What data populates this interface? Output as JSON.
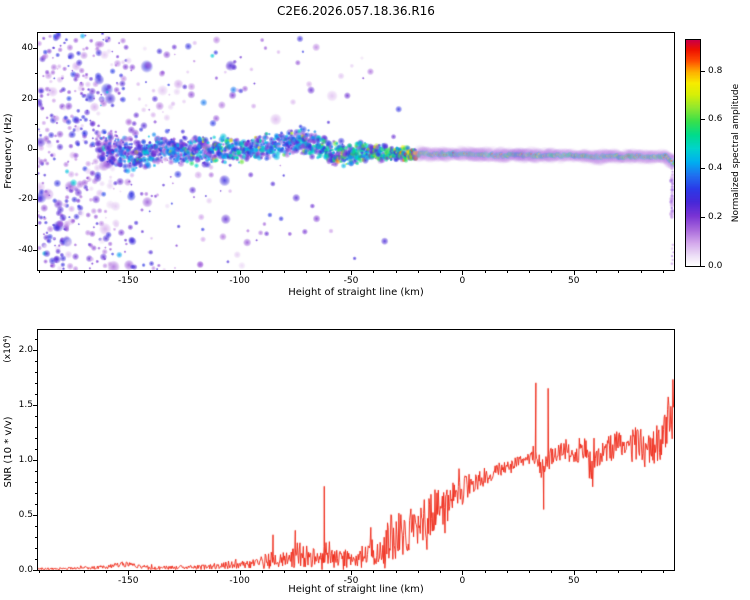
{
  "title": "C2E6.2026.057.18.36.R16",
  "chart_data": [
    {
      "id": "spectrogram",
      "type": "heatmap",
      "title": "C2E6.2026.057.18.36.R16",
      "xlabel": "Height of straight line (km)",
      "ylabel": "Frequency (Hz)",
      "xlim": [
        -190.5,
        95
      ],
      "ylim": [
        -48,
        46
      ],
      "xticks": [
        {
          "v": -150,
          "label": "-150"
        },
        {
          "v": -100,
          "label": "-100"
        },
        {
          "v": -50,
          "label": "-50"
        },
        {
          "v": 0,
          "label": "0"
        },
        {
          "v": 50,
          "label": "50"
        }
      ],
      "yticks": [
        {
          "v": 40,
          "label": "40"
        },
        {
          "v": 20,
          "label": "20"
        },
        {
          "v": 0,
          "label": "0"
        },
        {
          "v": -20,
          "label": "-20"
        },
        {
          "v": -40,
          "label": "-40"
        }
      ],
      "x_minor_step": 10,
      "y_minor_step": 10,
      "colorbar": {
        "label": "Normalized spectral amplitude",
        "vmax": 0.925,
        "ticks": [
          {
            "v": 0,
            "label": "0.0"
          },
          {
            "v": 0.2,
            "label": "0.2"
          },
          {
            "v": 0.4,
            "label": "0.4"
          },
          {
            "v": 0.6,
            "label": "0.6"
          },
          {
            "v": 0.8,
            "label": "0.8"
          }
        ]
      },
      "colormap_stops": [
        [
          0,
          "#ffffff"
        ],
        [
          0.04,
          "#f0e2f8"
        ],
        [
          0.1,
          "#d4a8ec"
        ],
        [
          0.16,
          "#a868dc"
        ],
        [
          0.22,
          "#7a34d4"
        ],
        [
          0.28,
          "#4828d8"
        ],
        [
          0.34,
          "#2b3ae8"
        ],
        [
          0.4,
          "#2070f0"
        ],
        [
          0.46,
          "#00b0f0"
        ],
        [
          0.52,
          "#00d4cc"
        ],
        [
          0.58,
          "#00dc8c"
        ],
        [
          0.64,
          "#38e04c"
        ],
        [
          0.7,
          "#90e830"
        ],
        [
          0.76,
          "#d8f008"
        ],
        [
          0.81,
          "#f8ec00"
        ],
        [
          0.86,
          "#ffb000"
        ],
        [
          0.91,
          "#ff4c00"
        ],
        [
          0.96,
          "#ee1000"
        ],
        [
          1,
          "#cc0044"
        ]
      ],
      "band": {
        "x": [
          -160,
          -150,
          -140,
          -130,
          -120,
          -110,
          -100,
          -90,
          -80,
          -72,
          -65,
          -58,
          -50,
          -42,
          -34,
          -28,
          -24,
          -20,
          -12,
          -4,
          6,
          16,
          26,
          36,
          46,
          56,
          66,
          76,
          86,
          92,
          95
        ],
        "center": [
          1,
          -2,
          -1,
          0,
          -1,
          0,
          -1,
          1,
          2,
          4,
          1,
          -2,
          -2,
          -1,
          -2,
          -2,
          -2,
          -2,
          -2,
          -2,
          -2,
          -2.5,
          -2.5,
          -2.5,
          -2.5,
          -3,
          -3,
          -3,
          -3,
          -3,
          -6
        ],
        "halfwidth": [
          10,
          9,
          8,
          7,
          8,
          7,
          7,
          7,
          7,
          7,
          7,
          6.5,
          6,
          5,
          4.5,
          4,
          3,
          2.5,
          2,
          2,
          2,
          2,
          2,
          2,
          2,
          1.8,
          1.8,
          1.8,
          1.8,
          2,
          3
        ],
        "amplitude": [
          0.22,
          0.32,
          0.3,
          0.3,
          0.33,
          0.34,
          0.35,
          0.34,
          0.3,
          0.33,
          0.36,
          0.38,
          0.4,
          0.44,
          0.48,
          0.5,
          0.58,
          0.68,
          0.74,
          0.78,
          0.8,
          0.8,
          0.8,
          0.8,
          0.8,
          0.8,
          0.8,
          0.8,
          0.8,
          0.78,
          0.5
        ]
      },
      "noise_field": {
        "x": [
          -190.5,
          -162,
          -152,
          -138,
          -122,
          -100,
          -80,
          -60,
          -40,
          -24
        ],
        "per_km": [
          13,
          11,
          6,
          3.5,
          2.5,
          1.6,
          0.9,
          0.5,
          0.25,
          0.1
        ],
        "x_to": -24,
        "amp_min": 0.04,
        "amp_max": 0.34
      },
      "edge_streak": {
        "x": 93.8,
        "freq_from": -3,
        "freq_to": -27
      }
    },
    {
      "id": "snr",
      "type": "line",
      "xlabel": "Height of straight line (km)",
      "ylabel": "SNR (10 * v/v)",
      "y_scale_label": "(x10⁴)",
      "line_color": "#ee2211",
      "xlim": [
        -190.5,
        95
      ],
      "ylim": [
        0,
        2.18
      ],
      "xticks": [
        {
          "v": -150,
          "label": "-150"
        },
        {
          "v": -100,
          "label": "-100"
        },
        {
          "v": -50,
          "label": "-50"
        },
        {
          "v": 0,
          "label": "0"
        },
        {
          "v": 50,
          "label": "50"
        }
      ],
      "yticks": [
        {
          "v": 0,
          "label": "0.0"
        },
        {
          "v": 0.5,
          "label": "0.5"
        },
        {
          "v": 1,
          "label": "1.0"
        },
        {
          "v": 1.5,
          "label": "1.5"
        },
        {
          "v": 2,
          "label": "2.0"
        }
      ],
      "x_minor_step": 10,
      "y_minor_step": 0.1,
      "envelope": {
        "x": [
          -190,
          -175,
          -160,
          -152,
          -148,
          -140,
          -130,
          -120,
          -110,
          -103,
          -97,
          -92,
          -87,
          -82,
          -78,
          -74,
          -70,
          -66,
          -62,
          -58,
          -54,
          -50,
          -47,
          -44,
          -41,
          -38,
          -36,
          -33,
          -30,
          -27,
          -24,
          -21,
          -18,
          -15,
          -12,
          -9,
          -6,
          -3,
          0,
          4,
          8,
          12,
          16,
          20,
          24,
          28,
          31,
          34,
          36,
          38,
          40,
          43,
          46,
          49,
          52,
          55,
          58,
          61,
          64,
          67,
          70,
          73,
          76,
          79,
          82,
          85,
          88,
          91,
          93,
          94.2,
          94.7,
          95
        ],
        "y": [
          0.012,
          0.015,
          0.025,
          0.05,
          0.04,
          0.022,
          0.02,
          0.025,
          0.035,
          0.05,
          0.045,
          0.06,
          0.09,
          0.08,
          0.1,
          0.14,
          0.12,
          0.13,
          0.16,
          0.13,
          0.11,
          0.1,
          0.08,
          0.14,
          0.26,
          0.18,
          0.12,
          0.28,
          0.33,
          0.3,
          0.38,
          0.36,
          0.42,
          0.5,
          0.55,
          0.52,
          0.6,
          0.68,
          0.72,
          0.78,
          0.82,
          0.86,
          0.9,
          0.94,
          0.98,
          1.0,
          1.02,
          1.0,
          0.88,
          1.0,
          1.03,
          1.06,
          1.1,
          1.05,
          1.08,
          1.12,
          0.95,
          1.05,
          1.1,
          1.12,
          1.15,
          1.1,
          1.12,
          1.15,
          1.1,
          1.05,
          1.18,
          1.25,
          1.45,
          1.3,
          2.15,
          0.06
        ],
        "noise": [
          0.01,
          0.012,
          0.018,
          0.03,
          0.025,
          0.018,
          0.018,
          0.022,
          0.03,
          0.04,
          0.035,
          0.05,
          0.08,
          0.06,
          0.09,
          0.12,
          0.1,
          0.11,
          0.13,
          0.11,
          0.09,
          0.08,
          0.06,
          0.12,
          0.2,
          0.15,
          0.1,
          0.22,
          0.24,
          0.2,
          0.24,
          0.22,
          0.22,
          0.2,
          0.2,
          0.18,
          0.16,
          0.14,
          0.13,
          0.11,
          0.1,
          0.08,
          0.07,
          0.06,
          0.05,
          0.05,
          0.06,
          0.08,
          0.15,
          0.12,
          0.08,
          0.09,
          0.1,
          0.1,
          0.11,
          0.12,
          0.14,
          0.11,
          0.12,
          0.13,
          0.13,
          0.14,
          0.15,
          0.16,
          0.17,
          0.2,
          0.2,
          0.22,
          0.25,
          0.25,
          0.1,
          0.02
        ]
      },
      "spikes": [
        {
          "x": -85,
          "y": 0.32
        },
        {
          "x": -75,
          "y": 0.36
        },
        {
          "x": -62,
          "y": 0.76
        },
        {
          "x": 33,
          "y": 1.7
        },
        {
          "x": 36.5,
          "y": 0.55
        },
        {
          "x": 38.5,
          "y": 1.65
        }
      ]
    }
  ]
}
